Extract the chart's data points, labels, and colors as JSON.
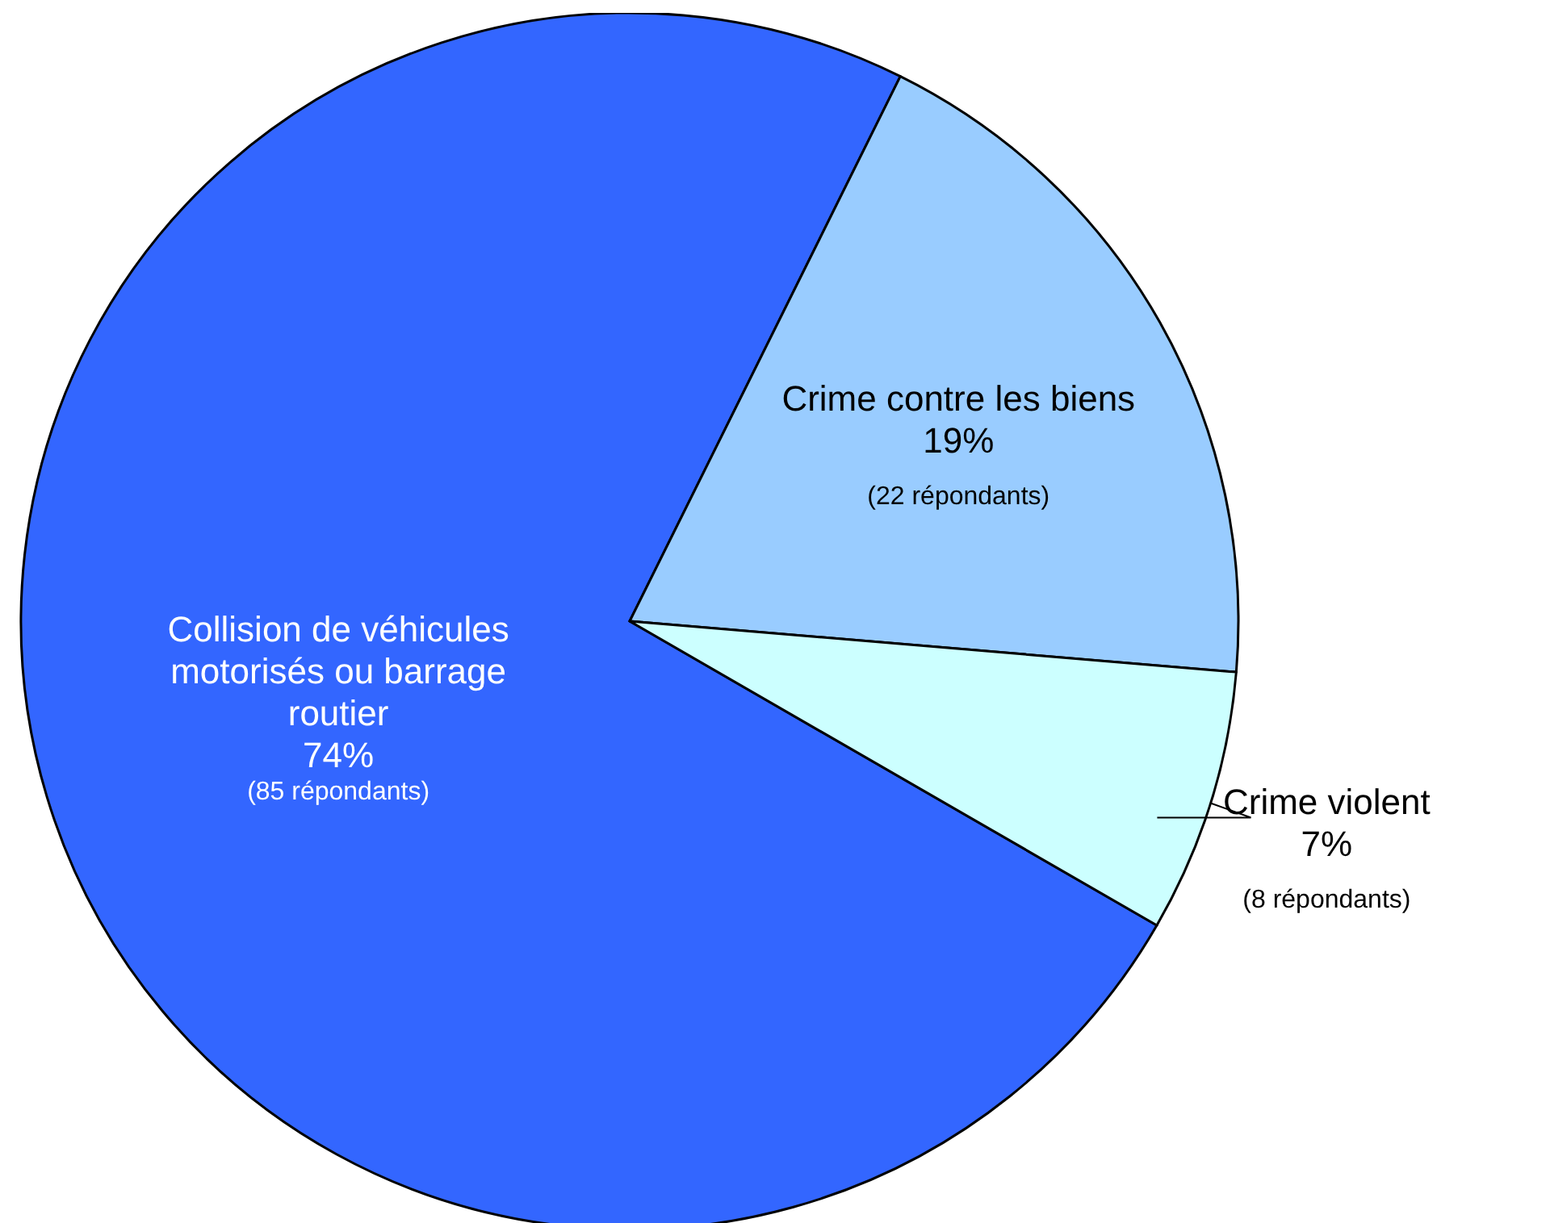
{
  "chart_data": {
    "type": "pie",
    "categories": [
      "Collision de véhicules motorisés ou barrage routier",
      "Crime contre les biens",
      "Crime violent"
    ],
    "values": [
      74,
      19,
      7
    ],
    "colors": [
      "#3366ff",
      "#99ccff",
      "#ccffff"
    ],
    "value_labels": [
      "74%",
      "19%",
      "7%"
    ],
    "annotations": [
      "(85 répondants)",
      "(22 répondants)",
      "(8 répondants)"
    ]
  }
}
